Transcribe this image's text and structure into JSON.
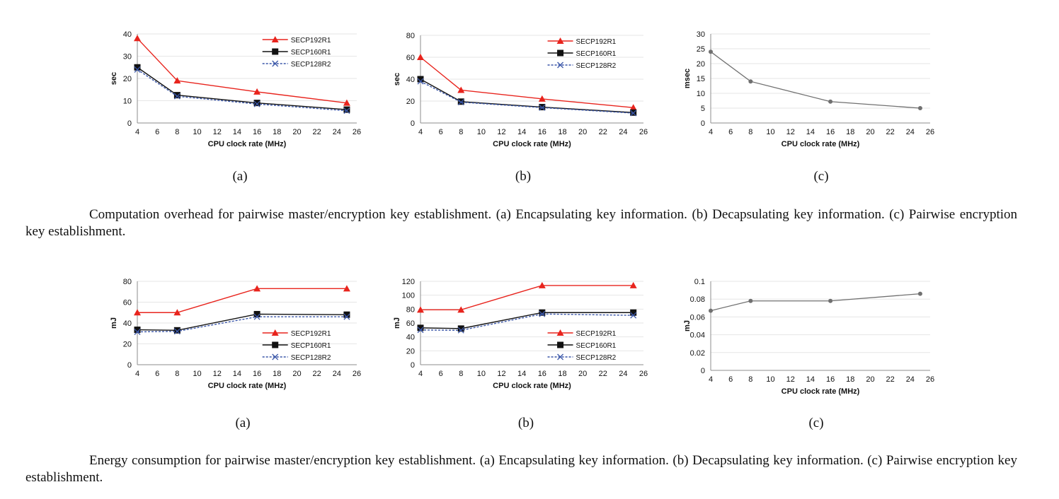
{
  "chart_data": [
    {
      "id": "fig1a",
      "type": "line",
      "xlabel": "CPU clock rate (MHz)",
      "ylabel": "sec",
      "xlim": [
        4,
        26
      ],
      "xticks": [
        4,
        6,
        8,
        10,
        12,
        14,
        16,
        18,
        20,
        22,
        24,
        26
      ],
      "ylim": [
        0,
        40
      ],
      "yticks": [
        0,
        10,
        20,
        30,
        40
      ],
      "grid": true,
      "legend": "top-right",
      "x": [
        4,
        8,
        16,
        25
      ],
      "series": [
        {
          "name": "SECP192R1",
          "values": [
            38,
            19,
            14,
            9
          ],
          "color": "#e8241d",
          "marker": "triangle",
          "dash": false
        },
        {
          "name": "SECP160R1",
          "values": [
            25,
            12.5,
            9,
            6
          ],
          "color": "#111111",
          "marker": "square",
          "dash": false
        },
        {
          "name": "SECP128R2",
          "values": [
            24,
            12,
            8.5,
            5.5
          ],
          "color": "#3a56a8",
          "marker": "x",
          "dash": true
        }
      ]
    },
    {
      "id": "fig1b",
      "type": "line",
      "xlabel": "CPU clock rate (MHz)",
      "ylabel": "sec",
      "xlim": [
        4,
        26
      ],
      "xticks": [
        4,
        6,
        8,
        10,
        12,
        14,
        16,
        18,
        20,
        22,
        24,
        26
      ],
      "ylim": [
        0,
        80
      ],
      "yticks": [
        0,
        20,
        40,
        60,
        80
      ],
      "grid": true,
      "legend": "top-right",
      "x": [
        4,
        8,
        16,
        25
      ],
      "series": [
        {
          "name": "SECP192R1",
          "values": [
            60,
            30,
            22,
            14
          ],
          "color": "#e8241d",
          "marker": "triangle",
          "dash": false
        },
        {
          "name": "SECP160R1",
          "values": [
            40,
            19.5,
            14.5,
            9.5
          ],
          "color": "#111111",
          "marker": "square",
          "dash": false
        },
        {
          "name": "SECP128R2",
          "values": [
            38,
            19,
            14,
            9
          ],
          "color": "#3a56a8",
          "marker": "x",
          "dash": true
        }
      ]
    },
    {
      "id": "fig1c",
      "type": "line",
      "xlabel": "CPU clock rate (MHz)",
      "ylabel": "msec",
      "xlim": [
        4,
        26
      ],
      "xticks": [
        4,
        6,
        8,
        10,
        12,
        14,
        16,
        18,
        20,
        22,
        24,
        26
      ],
      "ylim": [
        0,
        30
      ],
      "yticks": [
        0,
        5,
        10,
        15,
        20,
        25,
        30
      ],
      "grid": true,
      "legend": "none",
      "x": [
        4,
        8,
        16,
        25
      ],
      "series": [
        {
          "values": [
            24,
            14,
            7.2,
            5
          ],
          "color": "#707070",
          "marker": "dot",
          "dash": false
        }
      ]
    },
    {
      "id": "fig2a",
      "type": "line",
      "xlabel": "CPU clock rate (MHz)",
      "ylabel": "mJ",
      "xlim": [
        4,
        26
      ],
      "xticks": [
        4,
        6,
        8,
        10,
        12,
        14,
        16,
        18,
        20,
        22,
        24,
        26
      ],
      "ylim": [
        0,
        80
      ],
      "yticks": [
        0,
        20,
        40,
        60,
        80
      ],
      "grid": true,
      "legend": "bottom-right",
      "x": [
        4,
        8,
        16,
        25
      ],
      "series": [
        {
          "name": "SECP192R1",
          "values": [
            50,
            50,
            73,
            73
          ],
          "color": "#e8241d",
          "marker": "triangle",
          "dash": false
        },
        {
          "name": "SECP160R1",
          "values": [
            33.5,
            33,
            48.5,
            48
          ],
          "color": "#111111",
          "marker": "square",
          "dash": false
        },
        {
          "name": "SECP128R2",
          "values": [
            31.5,
            32,
            46,
            46
          ],
          "color": "#3a56a8",
          "marker": "x",
          "dash": true
        }
      ]
    },
    {
      "id": "fig2b",
      "type": "line",
      "xlabel": "CPU clock rate (MHz)",
      "ylabel": "mJ",
      "xlim": [
        4,
        26
      ],
      "xticks": [
        4,
        6,
        8,
        10,
        12,
        14,
        16,
        18,
        20,
        22,
        24,
        26
      ],
      "ylim": [
        0,
        120
      ],
      "yticks": [
        0,
        20,
        40,
        60,
        80,
        100,
        120
      ],
      "grid": true,
      "legend": "bottom-right",
      "x": [
        4,
        8,
        16,
        25
      ],
      "series": [
        {
          "name": "SECP192R1",
          "values": [
            79,
            79,
            114,
            114
          ],
          "color": "#e8241d",
          "marker": "triangle",
          "dash": false
        },
        {
          "name": "SECP160R1",
          "values": [
            53,
            52,
            75,
            75
          ],
          "color": "#111111",
          "marker": "square",
          "dash": false
        },
        {
          "name": "SECP128R2",
          "values": [
            50,
            49.5,
            73,
            71
          ],
          "color": "#3a56a8",
          "marker": "x",
          "dash": true
        }
      ]
    },
    {
      "id": "fig2c",
      "type": "line",
      "xlabel": "CPU clock rate (MHz)",
      "ylabel": "mJ",
      "xlim": [
        4,
        26
      ],
      "xticks": [
        4,
        6,
        8,
        10,
        12,
        14,
        16,
        18,
        20,
        22,
        24,
        26
      ],
      "ylim": [
        0,
        0.1
      ],
      "yticks": [
        0,
        0.02,
        0.04,
        0.06,
        0.08,
        0.1
      ],
      "grid": true,
      "legend": "none",
      "x": [
        4,
        8,
        16,
        25
      ],
      "series": [
        {
          "values": [
            0.067,
            0.078,
            0.078,
            0.086
          ],
          "color": "#707070",
          "marker": "dot",
          "dash": false
        }
      ]
    }
  ],
  "sublabels": {
    "fig1a": "(a)",
    "fig1b": "(b)",
    "fig1c": "(c)",
    "fig2a": "(a)",
    "fig2b": "(b)",
    "fig2c": "(c)"
  },
  "captions": {
    "fig1": "Computation overhead for pairwise master/encryption key establishment. (a) Encapsulating key information. (b) Decapsulating key information. (c) Pairwise encryption key establishment.",
    "fig2": "Energy consumption for pairwise master/encryption key establishment. (a) Encapsulating key information. (b) Decapsulating key information. (c) Pairwise encryption key establishment."
  }
}
